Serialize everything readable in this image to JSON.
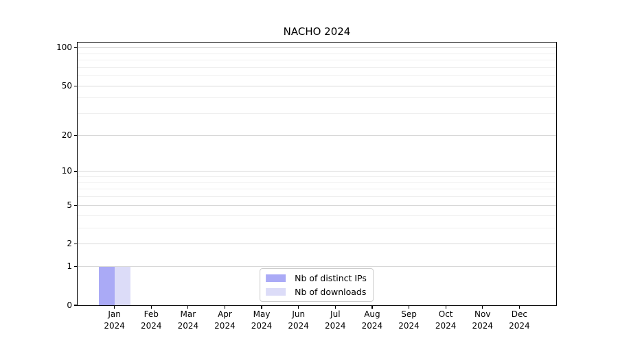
{
  "chart_data": {
    "type": "bar",
    "title": "NACHO 2024",
    "categories": [
      "Jan",
      "Feb",
      "Mar",
      "Apr",
      "May",
      "Jun",
      "Jul",
      "Aug",
      "Sep",
      "Oct",
      "Nov",
      "Dec"
    ],
    "category_year": "2024",
    "series": [
      {
        "name": "Nb of distinct IPs",
        "color": "#aaaaf6",
        "values": [
          1,
          0,
          0,
          0,
          0,
          0,
          0,
          0,
          0,
          0,
          0,
          0
        ]
      },
      {
        "name": "Nb of downloads",
        "color": "#dcdcf8",
        "values": [
          1,
          0,
          0,
          0,
          0,
          0,
          0,
          0,
          0,
          0,
          0,
          0
        ]
      }
    ],
    "xlabel": "",
    "ylabel": "",
    "y_scale": "log10(value+1)",
    "y_major_ticks": [
      0,
      1,
      2,
      5,
      10,
      20,
      50,
      100
    ],
    "y_minor_gridlines": [
      3,
      4,
      6,
      7,
      8,
      9,
      30,
      40,
      60,
      70,
      80,
      90
    ],
    "ylim": [
      0,
      110
    ],
    "grid": "horizontal",
    "legend_position": "lower center",
    "colors": {
      "major_grid": "#d8d8d8",
      "minor_grid": "#efefef",
      "spine": "#000000",
      "legend_border": "#cccccc",
      "background": "#ffffff",
      "text": "#000000"
    }
  }
}
